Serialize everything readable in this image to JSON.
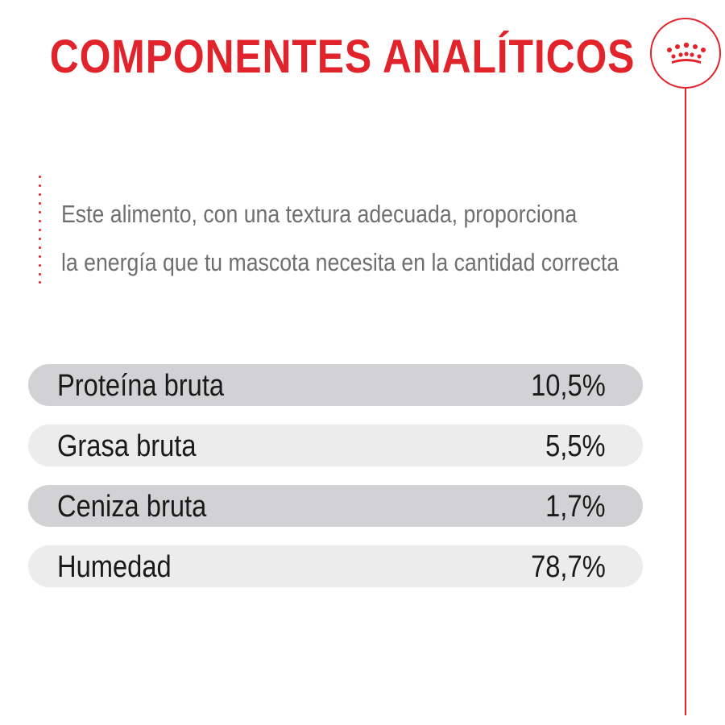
{
  "title": "COMPONENTES ANALÍTICOS",
  "logo": {
    "icon": "crown-icon",
    "color": "#e1242b"
  },
  "description": {
    "lines": [
      "Este alimento, con una textura adecuada, proporciona",
      "la energía que tu mascota necesita en la cantidad correcta"
    ]
  },
  "components": [
    {
      "label": "Proteína bruta",
      "value": "10,5%",
      "shade": "dark"
    },
    {
      "label": "Grasa bruta",
      "value": "5,5%",
      "shade": "light"
    },
    {
      "label": "Ceniza bruta",
      "value": "1,7%",
      "shade": "dark"
    },
    {
      "label": "Humedad",
      "value": "78,7%",
      "shade": "light"
    }
  ],
  "colors": {
    "accent": "#e1242b",
    "row_dark": "#d2d2d4",
    "row_light": "#ececec",
    "description_text": "#6f6f6f"
  }
}
